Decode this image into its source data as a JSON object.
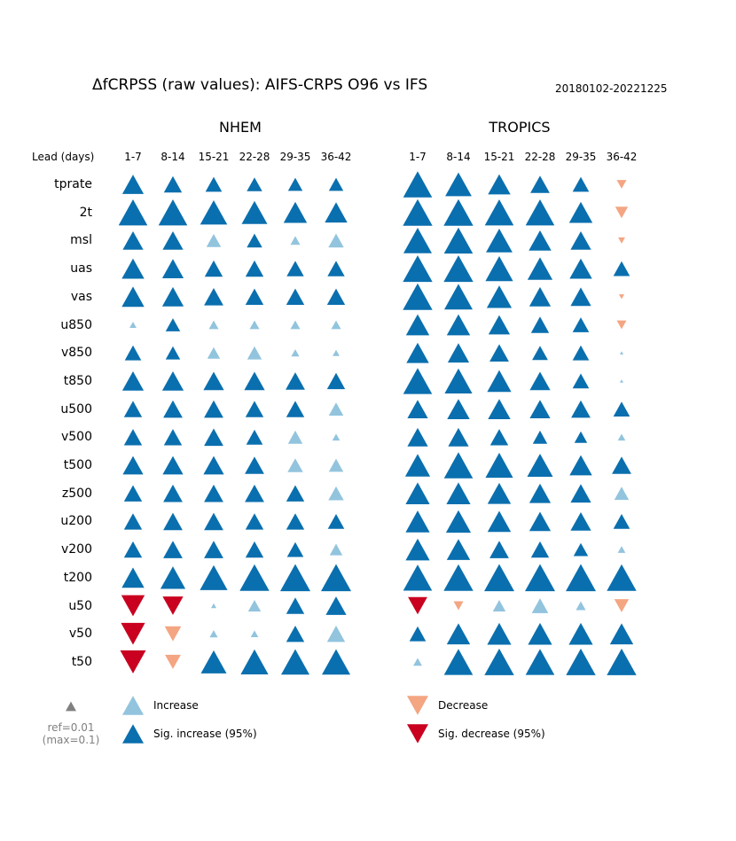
{
  "header": {
    "title": "ΔfCRPSS (raw values): AIFS-CRPS O96 vs IFS",
    "date_range": "20180102-20221225"
  },
  "lead_label": "Lead (days)",
  "legend": {
    "increase": "Increase",
    "sig_increase": "Sig. increase (95%)",
    "decrease": "Decrease",
    "sig_decrease": "Sig. decrease (95%)",
    "ref": "ref=0.01",
    "max": "(max=0.1)"
  },
  "colors": {
    "sig_increase": "#0a6fae",
    "increase": "#92c4de",
    "decrease": "#f4a582",
    "sig_decrease": "#c9001f",
    "reference": "#808080"
  },
  "chart_data": {
    "type": "scatter",
    "encoding": "marker size = magnitude of ΔfCRPSS; triangle up = increase, triangle down = decrease; dark = significant (95%)",
    "reference_value": 0.01,
    "max_value": 0.1,
    "columns": [
      "1-7",
      "8-14",
      "15-21",
      "22-28",
      "29-35",
      "36-42"
    ],
    "variables": [
      "tprate",
      "2t",
      "msl",
      "uas",
      "vas",
      "u850",
      "v850",
      "t850",
      "u500",
      "v500",
      "t500",
      "z500",
      "u200",
      "v200",
      "t200",
      "u50",
      "v50",
      "t50"
    ],
    "panels": [
      {
        "name": "NHEM",
        "values": [
          [
            0.04,
            0.025,
            0.02,
            0.017,
            0.015,
            0.015
          ],
          [
            0.09,
            0.09,
            0.075,
            0.065,
            0.05,
            0.045
          ],
          [
            0.035,
            0.035,
            0.015,
            0.017,
            0.01,
            0.017
          ],
          [
            0.045,
            0.04,
            0.025,
            0.025,
            0.022,
            0.022
          ],
          [
            0.045,
            0.04,
            0.03,
            0.025,
            0.025,
            0.025
          ],
          [
            0.005,
            0.015,
            0.01,
            0.01,
            0.01,
            0.01
          ],
          [
            0.02,
            0.015,
            0.012,
            0.015,
            0.007,
            0.005
          ],
          [
            0.04,
            0.04,
            0.035,
            0.035,
            0.03,
            0.025
          ],
          [
            0.025,
            0.03,
            0.03,
            0.025,
            0.025,
            0.015
          ],
          [
            0.025,
            0.025,
            0.03,
            0.02,
            0.015,
            0.006
          ],
          [
            0.035,
            0.035,
            0.035,
            0.03,
            0.017,
            0.015
          ],
          [
            0.025,
            0.03,
            0.03,
            0.03,
            0.025,
            0.017
          ],
          [
            0.025,
            0.03,
            0.03,
            0.025,
            0.025,
            0.02
          ],
          [
            0.025,
            0.03,
            0.03,
            0.025,
            0.02,
            0.012
          ],
          [
            0.045,
            0.06,
            0.08,
            0.095,
            0.1,
            0.1
          ],
          [
            -0.05,
            -0.035,
            0.003,
            0.012,
            0.025,
            0.035
          ],
          [
            -0.055,
            -0.02,
            0.007,
            0.006,
            0.025,
            0.025
          ],
          [
            -0.065,
            -0.018,
            0.065,
            0.08,
            0.085,
            0.085
          ]
        ],
        "significant": [
          [
            1,
            1,
            1,
            1,
            1,
            1
          ],
          [
            1,
            1,
            1,
            1,
            1,
            1
          ],
          [
            1,
            1,
            0,
            1,
            0,
            0
          ],
          [
            1,
            1,
            1,
            1,
            1,
            1
          ],
          [
            1,
            1,
            1,
            1,
            1,
            1
          ],
          [
            0,
            1,
            0,
            0,
            0,
            0
          ],
          [
            1,
            1,
            0,
            0,
            0,
            0
          ],
          [
            1,
            1,
            1,
            1,
            1,
            1
          ],
          [
            1,
            1,
            1,
            1,
            1,
            0
          ],
          [
            1,
            1,
            1,
            1,
            0,
            0
          ],
          [
            1,
            1,
            1,
            1,
            0,
            0
          ],
          [
            1,
            1,
            1,
            1,
            1,
            0
          ],
          [
            1,
            1,
            1,
            1,
            1,
            1
          ],
          [
            1,
            1,
            1,
            1,
            1,
            0
          ],
          [
            1,
            1,
            1,
            1,
            1,
            1
          ],
          [
            1,
            1,
            0,
            0,
            1,
            1
          ],
          [
            1,
            0,
            0,
            0,
            1,
            0
          ],
          [
            1,
            0,
            1,
            1,
            1,
            1
          ]
        ]
      },
      {
        "name": "TROPICS",
        "values": [
          [
            0.09,
            0.07,
            0.045,
            0.03,
            0.02,
            -0.01
          ],
          [
            0.095,
            0.095,
            0.09,
            0.09,
            0.05,
            -0.012
          ],
          [
            0.085,
            0.09,
            0.07,
            0.045,
            0.035,
            -0.005
          ],
          [
            0.095,
            0.095,
            0.08,
            0.06,
            0.045,
            0.02
          ],
          [
            0.095,
            0.085,
            0.06,
            0.04,
            0.035,
            -0.003
          ],
          [
            0.05,
            0.05,
            0.04,
            0.025,
            0.02,
            -0.01
          ],
          [
            0.045,
            0.04,
            0.03,
            0.018,
            0.02,
            0.001
          ],
          [
            0.09,
            0.08,
            0.055,
            0.035,
            0.02,
            0.001
          ],
          [
            0.035,
            0.045,
            0.045,
            0.035,
            0.03,
            0.02
          ],
          [
            0.035,
            0.035,
            0.025,
            0.015,
            0.012,
            0.006
          ],
          [
            0.06,
            0.09,
            0.08,
            0.065,
            0.045,
            0.03
          ],
          [
            0.055,
            0.055,
            0.05,
            0.04,
            0.035,
            0.015
          ],
          [
            0.055,
            0.06,
            0.05,
            0.04,
            0.035,
            0.02
          ],
          [
            0.055,
            0.05,
            0.03,
            0.025,
            0.015,
            0.006
          ],
          [
            0.09,
            0.095,
            0.1,
            0.1,
            0.1,
            0.095
          ],
          [
            -0.03,
            -0.01,
            0.012,
            0.02,
            0.01,
            -0.015
          ],
          [
            0.02,
            0.05,
            0.055,
            0.055,
            0.055,
            0.05
          ],
          [
            0.008,
            0.09,
            0.095,
            0.09,
            0.095,
            0.095
          ]
        ],
        "significant": [
          [
            1,
            1,
            1,
            1,
            1,
            0
          ],
          [
            1,
            1,
            1,
            1,
            1,
            0
          ],
          [
            1,
            1,
            1,
            1,
            1,
            0
          ],
          [
            1,
            1,
            1,
            1,
            1,
            1
          ],
          [
            1,
            1,
            1,
            1,
            1,
            0
          ],
          [
            1,
            1,
            1,
            1,
            1,
            0
          ],
          [
            1,
            1,
            1,
            1,
            1,
            0
          ],
          [
            1,
            1,
            1,
            1,
            1,
            0
          ],
          [
            1,
            1,
            1,
            1,
            1,
            1
          ],
          [
            1,
            1,
            1,
            1,
            1,
            0
          ],
          [
            1,
            1,
            1,
            1,
            1,
            1
          ],
          [
            1,
            1,
            1,
            1,
            1,
            0
          ],
          [
            1,
            1,
            1,
            1,
            1,
            1
          ],
          [
            1,
            1,
            1,
            1,
            1,
            0
          ],
          [
            1,
            1,
            1,
            1,
            1,
            1
          ],
          [
            1,
            0,
            0,
            0,
            0,
            0
          ],
          [
            1,
            1,
            1,
            1,
            1,
            1
          ],
          [
            0,
            1,
            1,
            1,
            1,
            1
          ]
        ]
      }
    ]
  }
}
